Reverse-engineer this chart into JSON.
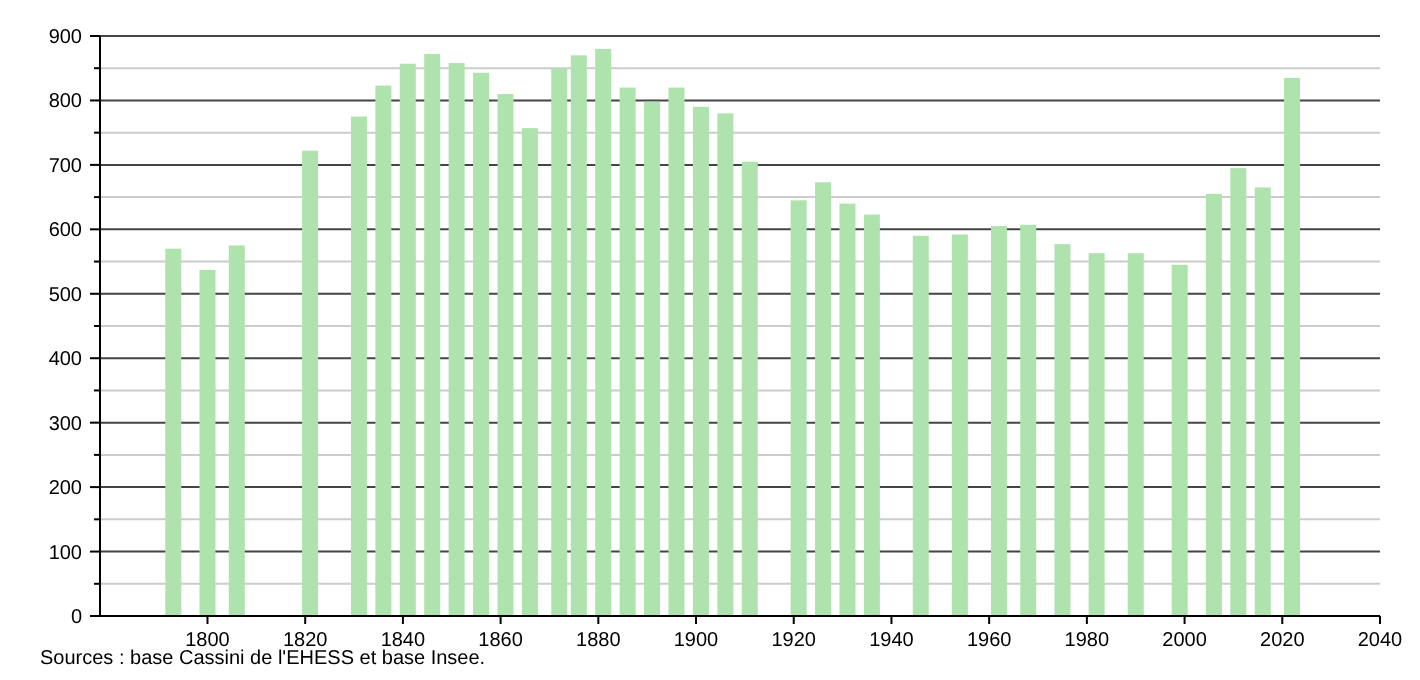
{
  "chart_data": {
    "type": "bar",
    "x": [
      1793,
      1800,
      1806,
      1821,
      1831,
      1836,
      1841,
      1846,
      1851,
      1856,
      1861,
      1866,
      1872,
      1876,
      1881,
      1886,
      1891,
      1896,
      1901,
      1906,
      1911,
      1921,
      1926,
      1931,
      1936,
      1946,
      1954,
      1962,
      1968,
      1975,
      1982,
      1990,
      1999,
      2006,
      2011,
      2016,
      2022
    ],
    "values": [
      570,
      537,
      575,
      722,
      775,
      823,
      857,
      872,
      858,
      843,
      810,
      757,
      850,
      870,
      880,
      820,
      798,
      820,
      790,
      780,
      705,
      645,
      673,
      640,
      623,
      590,
      592,
      605,
      607,
      577,
      563,
      563,
      545,
      655,
      695,
      665,
      835
    ],
    "color": "#aee3ae",
    "xlim": [
      1778,
      2040
    ],
    "xticks": [
      1800,
      1820,
      1840,
      1860,
      1880,
      1900,
      1920,
      1940,
      1960,
      1980,
      2000,
      2020,
      2040
    ],
    "ylim": [
      0,
      900
    ],
    "yticks": [
      0,
      100,
      200,
      300,
      400,
      500,
      600,
      700,
      800,
      900
    ],
    "grid": "y",
    "annotations": [
      "Sources : base Cassini de l'EHESS et base Insee."
    ]
  }
}
